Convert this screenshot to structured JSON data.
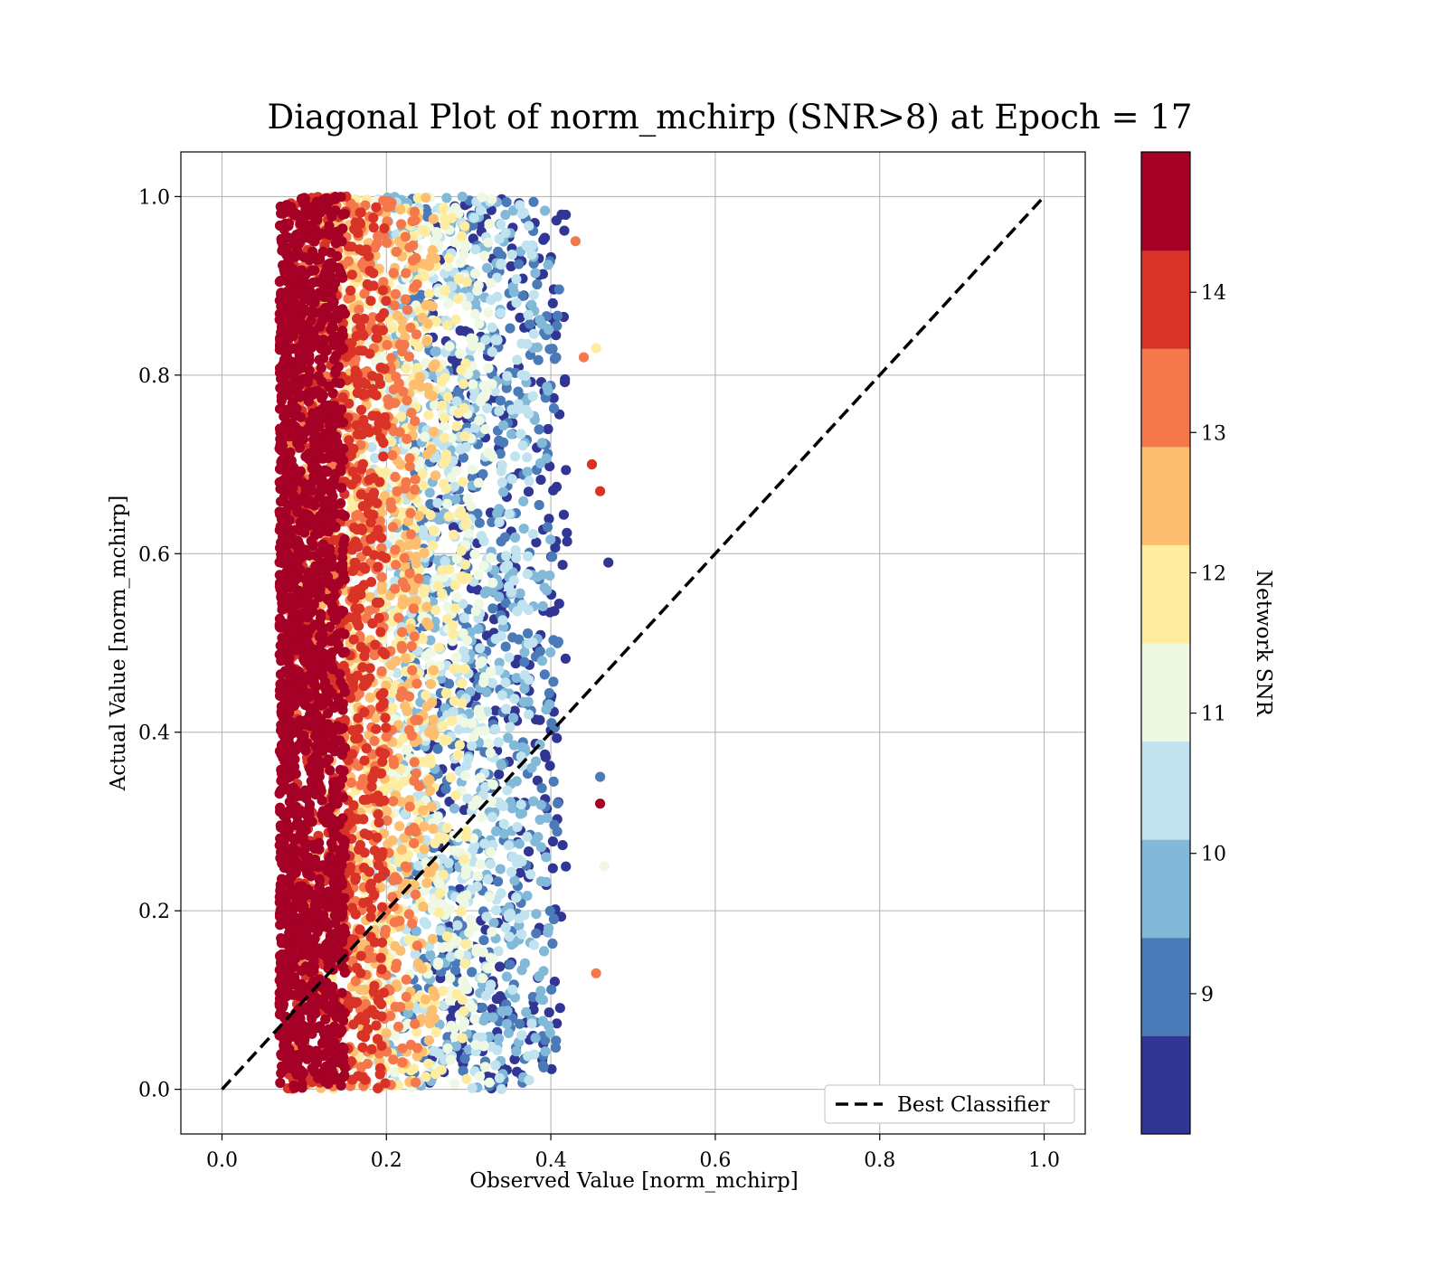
{
  "chart_data": {
    "type": "scatter",
    "title": "Diagonal Plot of norm_mchirp (SNR>8) at Epoch = 17",
    "xlabel": "Observed Value [norm_mchirp]",
    "ylabel": "Actual Value [norm_mchirp]",
    "xlim": [
      -0.05,
      1.05
    ],
    "ylim": [
      -0.05,
      1.05
    ],
    "xticks": [
      "0.0",
      "0.2",
      "0.4",
      "0.6",
      "0.8",
      "1.0"
    ],
    "yticks": [
      "0.0",
      "0.2",
      "0.4",
      "0.6",
      "0.8",
      "1.0"
    ],
    "grid": true,
    "legend": {
      "placement": "lower-right",
      "entries": [
        "Best Classifier"
      ]
    },
    "reference_line": {
      "name": "Best Classifier",
      "style": "dashed",
      "color": "#000000",
      "x": [
        0.0,
        1.0
      ],
      "y": [
        0.0,
        1.0
      ]
    },
    "colorbar": {
      "label": "Network SNR",
      "range": [
        8.0,
        15.0
      ],
      "ticks": [
        "9",
        "10",
        "11",
        "12",
        "13",
        "14"
      ],
      "levels": [
        {
          "from": 8.0,
          "to": 8.7,
          "color": "#313695"
        },
        {
          "from": 8.7,
          "to": 9.4,
          "color": "#4a7ab7"
        },
        {
          "from": 9.4,
          "to": 10.1,
          "color": "#83b9d8"
        },
        {
          "from": 10.1,
          "to": 10.8,
          "color": "#c0e3ef"
        },
        {
          "from": 10.8,
          "to": 11.5,
          "color": "#eef8e2"
        },
        {
          "from": 11.5,
          "to": 12.2,
          "color": "#feeda1"
        },
        {
          "from": 12.2,
          "to": 12.9,
          "color": "#fdbe70"
        },
        {
          "from": 12.9,
          "to": 13.6,
          "color": "#f4784b"
        },
        {
          "from": 13.6,
          "to": 14.3,
          "color": "#d93328"
        },
        {
          "from": 14.3,
          "to": 15.0,
          "color": "#a50026"
        }
      ]
    },
    "scatter_summary": {
      "y_range": [
        0.0,
        1.0
      ],
      "bands": [
        {
          "snr": 14.6,
          "x_range": [
            0.07,
            0.15
          ]
        },
        {
          "snr": 14.0,
          "x_range": [
            0.08,
            0.2
          ]
        },
        {
          "snr": 13.3,
          "x_range": [
            0.08,
            0.24
          ]
        },
        {
          "snr": 12.6,
          "x_range": [
            0.1,
            0.26
          ]
        },
        {
          "snr": 11.9,
          "x_range": [
            0.13,
            0.3
          ]
        },
        {
          "snr": 11.2,
          "x_range": [
            0.15,
            0.33
          ]
        },
        {
          "snr": 10.4,
          "x_range": [
            0.18,
            0.38
          ]
        },
        {
          "snr": 9.7,
          "x_range": [
            0.2,
            0.4
          ]
        },
        {
          "snr": 9.0,
          "x_range": [
            0.22,
            0.41
          ]
        },
        {
          "snr": 8.4,
          "x_range": [
            0.25,
            0.42
          ]
        }
      ]
    }
  }
}
